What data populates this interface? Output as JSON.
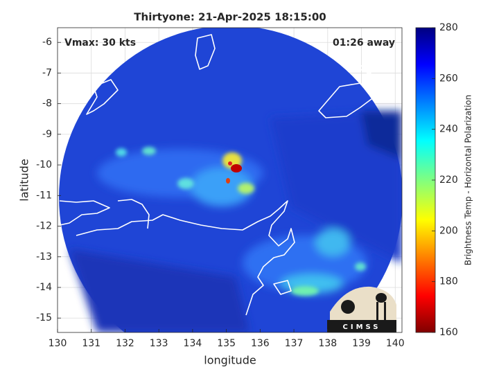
{
  "title": "Thirtyone: 21-Apr-2025 18:15:00",
  "x_label": "longitude",
  "y_label": "latitude",
  "xlim": [
    130,
    140.2
  ],
  "xticks": [
    130,
    131,
    132,
    133,
    134,
    135,
    136,
    137,
    138,
    139,
    140
  ],
  "ylim": [
    -15.47,
    -5.52
  ],
  "yticks": [
    -6,
    -7,
    -8,
    -9,
    -10,
    -11,
    -12,
    -13,
    -14,
    -15
  ],
  "grid": true,
  "annotations": {
    "vmax": "Vmax: 30 kts",
    "away": "01:26 away"
  },
  "logo": "CIMSS",
  "colorbar": {
    "label": "Brightness Temp - Horizontal Polarization",
    "lim": [
      160,
      280
    ],
    "ticks": [
      160,
      180,
      200,
      220,
      240,
      260,
      280
    ],
    "colormap": "jet-reversed"
  }
}
